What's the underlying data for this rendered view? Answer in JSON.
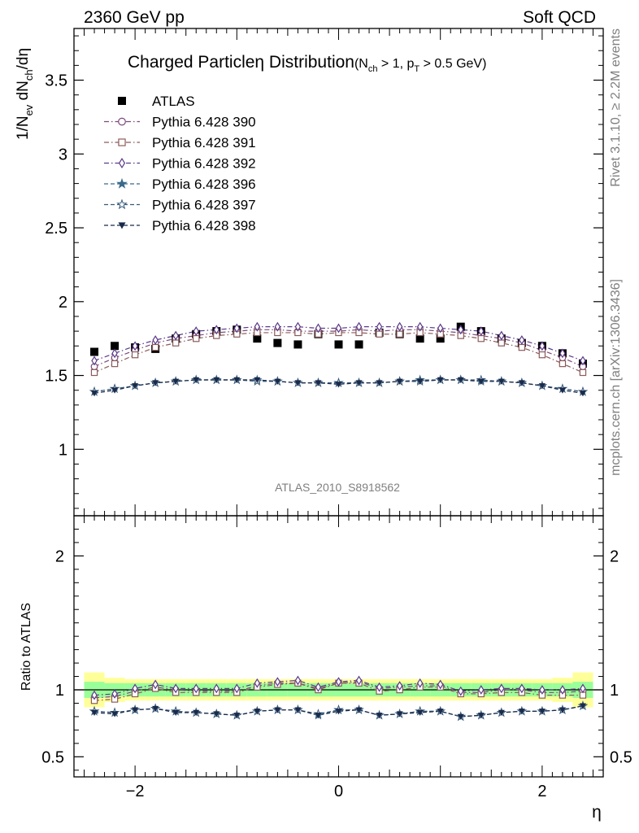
{
  "header": {
    "left": "2360 GeV pp",
    "right": "Soft QCD"
  },
  "side_text": {
    "rivet": "Rivet 3.1.10, ≥ 2.2M events",
    "mcplots": "mcplots.cern.ch [arXiv:1306.3436]"
  },
  "analysis_tag": "ATLAS_2010_S8918562",
  "title": {
    "main": "Charged Particleη Distribution",
    "cut_open": "(N",
    "cut_sub": "ch",
    "cut_mid": " > 1, p",
    "cut_sub2": "T",
    "cut_close": " > 0.5 GeV)"
  },
  "axes": {
    "y_main_label": "1/N",
    "y_main_sub1": "ev",
    "y_main_mid": " dN",
    "y_main_sub2": "ch",
    "y_main_end": "/dη",
    "y_ratio_label": "Ratio to ATLAS",
    "x_label": "η"
  },
  "chart_data": [
    {
      "type": "scatter",
      "panel": "main",
      "xlim": [
        -2.6,
        2.6
      ],
      "ylim": [
        0.55,
        3.85
      ],
      "y_ticks": [
        1,
        1.5,
        2,
        2.5,
        3,
        3.5
      ],
      "y_tick_labels": [
        "1",
        "1.5",
        "2",
        "2.5",
        "3",
        "3.5"
      ],
      "x": [
        -2.4,
        -2.2,
        -2.0,
        -1.8,
        -1.6,
        -1.4,
        -1.2,
        -1.0,
        -0.8,
        -0.6,
        -0.4,
        -0.2,
        0.0,
        0.2,
        0.4,
        0.6,
        0.8,
        1.0,
        1.2,
        1.4,
        1.6,
        1.8,
        2.0,
        2.2,
        2.4
      ],
      "series": [
        {
          "name": "ATLAS",
          "marker": "square-filled",
          "color": "#000000",
          "linestyle": "none",
          "values": [
            1.66,
            1.7,
            1.69,
            1.68,
            1.75,
            1.78,
            1.8,
            1.81,
            1.75,
            1.72,
            1.71,
            1.78,
            1.71,
            1.71,
            1.79,
            1.78,
            1.75,
            1.75,
            1.83,
            1.8,
            1.75,
            1.72,
            1.7,
            1.65,
            1.58
          ]
        },
        {
          "name": "Pythia 6.428 390",
          "marker": "circle-open",
          "color": "#7b4a7b",
          "linestyle": "dashdot",
          "values": [
            1.56,
            1.62,
            1.67,
            1.72,
            1.75,
            1.77,
            1.79,
            1.8,
            1.81,
            1.81,
            1.8,
            1.8,
            1.8,
            1.81,
            1.8,
            1.81,
            1.81,
            1.8,
            1.79,
            1.77,
            1.75,
            1.72,
            1.67,
            1.62,
            1.56
          ]
        },
        {
          "name": "Pythia 6.428 391",
          "marker": "square-open",
          "color": "#8b5a5a",
          "linestyle": "dashdot",
          "values": [
            1.52,
            1.58,
            1.64,
            1.69,
            1.72,
            1.75,
            1.77,
            1.78,
            1.79,
            1.79,
            1.79,
            1.78,
            1.79,
            1.79,
            1.78,
            1.78,
            1.79,
            1.78,
            1.77,
            1.75,
            1.72,
            1.69,
            1.64,
            1.58,
            1.52
          ]
        },
        {
          "name": "Pythia 6.428 392",
          "marker": "diamond-open",
          "color": "#5a3a8a",
          "linestyle": "dashdot",
          "values": [
            1.6,
            1.65,
            1.7,
            1.74,
            1.77,
            1.8,
            1.81,
            1.82,
            1.83,
            1.83,
            1.83,
            1.82,
            1.82,
            1.83,
            1.83,
            1.83,
            1.83,
            1.82,
            1.81,
            1.8,
            1.77,
            1.74,
            1.7,
            1.65,
            1.6
          ]
        },
        {
          "name": "Pythia 6.428 396",
          "marker": "star-filled",
          "color": "#3a6a8a",
          "linestyle": "dashed",
          "values": [
            1.39,
            1.41,
            1.43,
            1.45,
            1.46,
            1.47,
            1.47,
            1.47,
            1.47,
            1.46,
            1.45,
            1.45,
            1.45,
            1.45,
            1.45,
            1.46,
            1.47,
            1.47,
            1.47,
            1.46,
            1.46,
            1.45,
            1.43,
            1.41,
            1.39
          ]
        },
        {
          "name": "Pythia 6.428 397",
          "marker": "star-open",
          "color": "#3a5a7a",
          "linestyle": "dashed",
          "values": [
            1.39,
            1.41,
            1.43,
            1.45,
            1.46,
            1.47,
            1.47,
            1.47,
            1.46,
            1.46,
            1.45,
            1.45,
            1.45,
            1.45,
            1.45,
            1.46,
            1.46,
            1.47,
            1.47,
            1.47,
            1.46,
            1.45,
            1.43,
            1.41,
            1.39
          ]
        },
        {
          "name": "Pythia 6.428 398",
          "marker": "triangle-down-filled",
          "color": "#1a2a4a",
          "linestyle": "dashed",
          "values": [
            1.38,
            1.4,
            1.43,
            1.45,
            1.46,
            1.47,
            1.47,
            1.47,
            1.47,
            1.46,
            1.45,
            1.45,
            1.44,
            1.45,
            1.45,
            1.46,
            1.46,
            1.47,
            1.47,
            1.46,
            1.46,
            1.45,
            1.43,
            1.4,
            1.38
          ]
        }
      ],
      "legend_position": "top-left"
    },
    {
      "type": "line",
      "panel": "ratio",
      "xlim": [
        -2.6,
        2.6
      ],
      "ylim": [
        0.35,
        2.3
      ],
      "y_ticks": [
        0.5,
        1,
        2
      ],
      "y_tick_labels": [
        "0.5",
        "1",
        "2"
      ],
      "x_ticks": [
        -2,
        0,
        2
      ],
      "x_tick_labels": [
        "−2",
        "0",
        "2"
      ],
      "x": [
        -2.4,
        -2.2,
        -2.0,
        -1.8,
        -1.6,
        -1.4,
        -1.2,
        -1.0,
        -0.8,
        -0.6,
        -0.4,
        -0.2,
        0.0,
        0.2,
        0.4,
        0.6,
        0.8,
        1.0,
        1.2,
        1.4,
        1.6,
        1.8,
        2.0,
        2.2,
        2.4
      ],
      "bands": {
        "yellow_halfwidth": [
          0.13,
          0.09,
          0.08,
          0.08,
          0.08,
          0.08,
          0.08,
          0.08,
          0.08,
          0.08,
          0.08,
          0.08,
          0.08,
          0.08,
          0.08,
          0.08,
          0.08,
          0.08,
          0.08,
          0.08,
          0.08,
          0.08,
          0.08,
          0.09,
          0.13
        ],
        "green_halfwidth": [
          0.06,
          0.05,
          0.05,
          0.05,
          0.05,
          0.05,
          0.05,
          0.05,
          0.05,
          0.05,
          0.05,
          0.05,
          0.05,
          0.05,
          0.05,
          0.05,
          0.05,
          0.05,
          0.05,
          0.05,
          0.05,
          0.05,
          0.05,
          0.05,
          0.06
        ]
      },
      "series": [
        {
          "name": "Pythia 6.428 390",
          "color": "#7b4a7b",
          "marker": "circle-open",
          "values": [
            0.94,
            0.95,
            0.99,
            1.02,
            1.0,
            0.99,
            0.99,
            0.99,
            1.03,
            1.05,
            1.05,
            1.01,
            1.05,
            1.06,
            1.01,
            1.02,
            1.03,
            1.03,
            0.98,
            0.98,
            1.0,
            1.0,
            0.98,
            0.98,
            0.99
          ]
        },
        {
          "name": "Pythia 6.428 391",
          "color": "#8b5a5a",
          "marker": "square-open",
          "values": [
            0.92,
            0.93,
            0.97,
            1.01,
            0.98,
            0.98,
            0.98,
            0.98,
            1.02,
            1.04,
            1.05,
            1.0,
            1.05,
            1.05,
            0.99,
            1.0,
            1.02,
            1.02,
            0.97,
            0.97,
            0.98,
            0.98,
            0.96,
            0.96,
            0.96
          ]
        },
        {
          "name": "Pythia 6.428 392",
          "color": "#5a3a8a",
          "marker": "diamond-open",
          "values": [
            0.96,
            0.97,
            1.01,
            1.04,
            1.01,
            1.01,
            1.01,
            1.01,
            1.05,
            1.06,
            1.07,
            1.02,
            1.06,
            1.07,
            1.02,
            1.03,
            1.05,
            1.04,
            0.99,
            1.0,
            1.01,
            1.01,
            1.0,
            1.0,
            1.01
          ]
        },
        {
          "name": "Pythia 6.428 396",
          "color": "#3a6a8a",
          "marker": "star-filled",
          "values": [
            0.84,
            0.83,
            0.85,
            0.86,
            0.84,
            0.83,
            0.82,
            0.81,
            0.84,
            0.85,
            0.85,
            0.81,
            0.85,
            0.85,
            0.81,
            0.82,
            0.84,
            0.84,
            0.8,
            0.81,
            0.83,
            0.84,
            0.84,
            0.85,
            0.88
          ]
        },
        {
          "name": "Pythia 6.428 397",
          "color": "#3a5a7a",
          "marker": "star-open",
          "values": [
            0.84,
            0.83,
            0.85,
            0.86,
            0.84,
            0.83,
            0.82,
            0.81,
            0.84,
            0.85,
            0.85,
            0.82,
            0.85,
            0.85,
            0.81,
            0.82,
            0.84,
            0.84,
            0.8,
            0.81,
            0.83,
            0.84,
            0.84,
            0.85,
            0.88
          ]
        },
        {
          "name": "Pythia 6.428 398",
          "color": "#1a2a4a",
          "marker": "triangle-down-filled",
          "values": [
            0.83,
            0.82,
            0.85,
            0.86,
            0.83,
            0.83,
            0.82,
            0.81,
            0.84,
            0.85,
            0.85,
            0.81,
            0.84,
            0.85,
            0.81,
            0.82,
            0.83,
            0.84,
            0.8,
            0.81,
            0.83,
            0.84,
            0.84,
            0.85,
            0.88
          ]
        }
      ]
    }
  ]
}
